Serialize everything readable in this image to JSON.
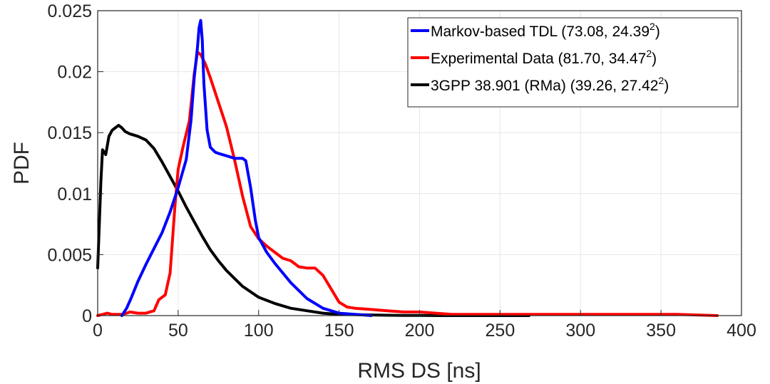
{
  "chart_data": {
    "type": "line",
    "xlabel": "RMS DS [ns]",
    "ylabel": "PDF",
    "xlim": [
      0,
      400
    ],
    "ylim": [
      0,
      0.025
    ],
    "x_ticks": [
      "0",
      "50",
      "100",
      "150",
      "200",
      "250",
      "300",
      "350",
      "400"
    ],
    "y_ticks": [
      "0",
      "0.005",
      "0.01",
      "0.015",
      "0.02",
      "0.025"
    ],
    "grid": true,
    "legend_position": "top-right",
    "series": [
      {
        "name": "Markov-based TDL",
        "stats": "(73.08, 24.39",
        "sup": "2",
        "stats_close": ")",
        "color": "#0000ff",
        "x": [
          15,
          18,
          21,
          25,
          30,
          35,
          40,
          45,
          50,
          55,
          58,
          60,
          62,
          63,
          64,
          65,
          66,
          68,
          70,
          73,
          75,
          80,
          85,
          90,
          92,
          95,
          98,
          100,
          105,
          110,
          120,
          130,
          140,
          150,
          160,
          170
        ],
        "y": [
          0,
          0.0006,
          0.0015,
          0.0028,
          0.0042,
          0.0055,
          0.0068,
          0.0085,
          0.0105,
          0.0128,
          0.016,
          0.0195,
          0.022,
          0.0236,
          0.0242,
          0.0226,
          0.019,
          0.0152,
          0.0138,
          0.0134,
          0.0133,
          0.0131,
          0.0129,
          0.0129,
          0.0127,
          0.0105,
          0.0078,
          0.0064,
          0.0052,
          0.0043,
          0.0027,
          0.0014,
          0.0006,
          0.0002,
          0.0001,
          0.0
        ]
      },
      {
        "name": "Experimental Data",
        "stats": "(81.70, 34.47",
        "sup": "2",
        "stats_close": ")",
        "color": "#ff0000",
        "x": [
          0,
          3,
          6,
          9,
          12,
          15,
          18,
          20,
          25,
          30,
          35,
          38,
          42,
          45,
          48,
          50,
          53,
          57,
          60,
          62,
          64,
          67,
          70,
          73,
          75,
          80,
          85,
          90,
          95,
          100,
          105,
          110,
          115,
          120,
          125,
          130,
          135,
          140,
          145,
          150,
          155,
          160,
          170,
          180,
          190,
          200,
          210,
          220,
          240,
          260,
          280,
          300,
          320,
          340,
          360,
          385
        ],
        "y": [
          0,
          0.0001,
          0.0002,
          0.0001,
          0.0001,
          0.0001,
          0.0002,
          0.0003,
          0.0002,
          0.0002,
          0.0004,
          0.0013,
          0.0017,
          0.0035,
          0.009,
          0.012,
          0.0138,
          0.016,
          0.0198,
          0.0216,
          0.0214,
          0.0206,
          0.0195,
          0.0183,
          0.0175,
          0.0155,
          0.0128,
          0.0098,
          0.0073,
          0.0063,
          0.0057,
          0.0052,
          0.0047,
          0.0045,
          0.004,
          0.0039,
          0.0039,
          0.0033,
          0.0022,
          0.0011,
          0.0007,
          0.0006,
          0.0005,
          0.0004,
          0.0003,
          0.0003,
          0.0002,
          0.0001,
          0.0001,
          0.0001,
          0.0001,
          0.0001,
          0.0001,
          0.0001,
          0.0001,
          0.0
        ]
      },
      {
        "name": "3GPP 38.901 (RMa)",
        "stats": "(39.26, 27.42",
        "sup": "2",
        "stats_close": ")",
        "color": "#000000",
        "x": [
          0,
          1,
          2,
          3,
          5,
          7,
          9,
          11,
          13,
          15,
          17,
          20,
          25,
          30,
          35,
          40,
          45,
          50,
          55,
          60,
          65,
          70,
          75,
          80,
          90,
          100,
          110,
          120,
          130,
          140,
          150,
          160,
          170,
          180,
          190,
          200,
          210,
          220,
          230,
          240,
          250,
          260,
          268
        ],
        "y": [
          0.0039,
          0.0075,
          0.011,
          0.0136,
          0.0132,
          0.0147,
          0.0152,
          0.0154,
          0.0156,
          0.0154,
          0.0151,
          0.0149,
          0.0147,
          0.0144,
          0.0137,
          0.0126,
          0.0114,
          0.0102,
          0.0089,
          0.0077,
          0.0065,
          0.0054,
          0.0045,
          0.0037,
          0.0024,
          0.0015,
          0.001,
          0.0006,
          0.0004,
          0.0002,
          0.0001,
          8e-05,
          5e-05,
          3e-05,
          2e-05,
          1e-05,
          0,
          0,
          0,
          0,
          0,
          0,
          0
        ]
      }
    ]
  }
}
